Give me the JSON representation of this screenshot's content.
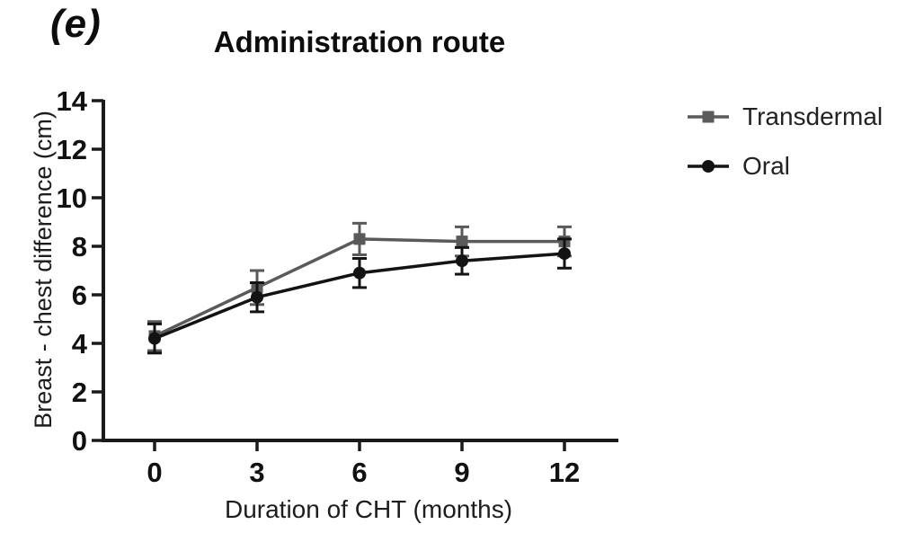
{
  "figure": {
    "panel_label": "(e)"
  },
  "chart_data": {
    "type": "line",
    "title": "Administration route",
    "xlabel": "Duration of CHT (months)",
    "ylabel": "Breast - chest difference (cm)",
    "x": [
      0,
      3,
      6,
      9,
      12
    ],
    "xtick_labels": [
      "0",
      "3",
      "6",
      "9",
      "12"
    ],
    "yticks": [
      0,
      2,
      4,
      6,
      8,
      10,
      12,
      14
    ],
    "ylim": [
      0,
      14
    ],
    "xlim": [
      -1.5,
      13.7
    ],
    "grid": false,
    "legend_position": "right-outside",
    "error_bars": "symmetric, with caps",
    "series": [
      {
        "name": "Transdermal",
        "marker": "square",
        "color": "#5a5a5a",
        "values": [
          4.3,
          6.3,
          8.3,
          8.2,
          8.2
        ],
        "errors": [
          0.6,
          0.7,
          0.65,
          0.6,
          0.6
        ]
      },
      {
        "name": "Oral",
        "marker": "circle",
        "color": "#131313",
        "values": [
          4.2,
          5.9,
          6.9,
          7.4,
          7.7
        ],
        "errors": [
          0.6,
          0.6,
          0.6,
          0.55,
          0.6
        ]
      }
    ]
  },
  "colors": {
    "axis": "#1a1a1a",
    "tick_text": "#111111",
    "background": "#ffffff"
  }
}
